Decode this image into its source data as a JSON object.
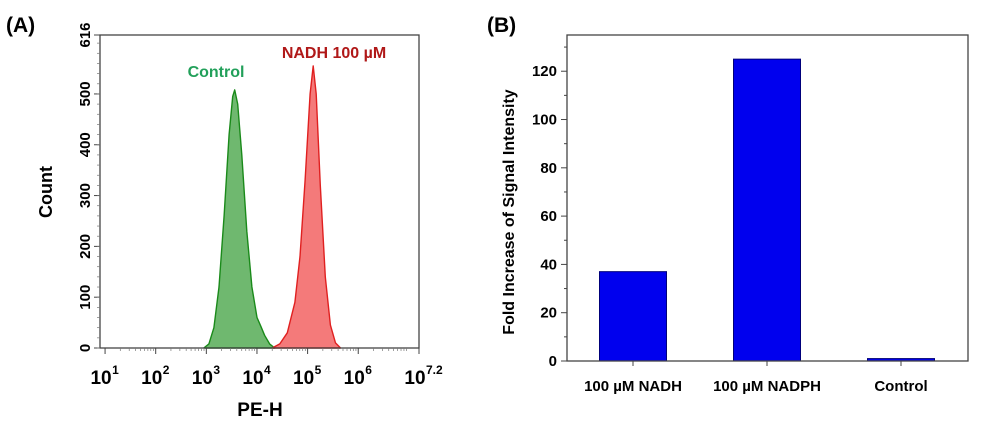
{
  "chart_data": [
    {
      "panel_label": "(A)",
      "type": "area",
      "xlabel": "PE-H",
      "ylabel": "Count",
      "x_scale": "log10",
      "xlim_log10": [
        0.9,
        7.2
      ],
      "ylim": [
        0,
        616
      ],
      "x_ticks": [
        {
          "base": "10",
          "exp": "1",
          "log": 1
        },
        {
          "base": "10",
          "exp": "2",
          "log": 2
        },
        {
          "base": "10",
          "exp": "3",
          "log": 3
        },
        {
          "base": "10",
          "exp": "4",
          "log": 4
        },
        {
          "base": "10",
          "exp": "5",
          "log": 5
        },
        {
          "base": "10",
          "exp": "6",
          "log": 6
        },
        {
          "base": "10",
          "exp": "7.2",
          "log": 7.2
        }
      ],
      "y_ticks": [
        0,
        100,
        200,
        300,
        400,
        500,
        616
      ],
      "grid": false,
      "series": [
        {
          "name": "Control",
          "color": "#1a8a1a",
          "fill": "#6fb86f",
          "label_color": "#22a05a",
          "points_log10x_count": [
            [
              2.95,
              0
            ],
            [
              3.05,
              8
            ],
            [
              3.15,
              40
            ],
            [
              3.25,
              120
            ],
            [
              3.35,
              260
            ],
            [
              3.45,
              420
            ],
            [
              3.52,
              495
            ],
            [
              3.56,
              508
            ],
            [
              3.62,
              480
            ],
            [
              3.7,
              380
            ],
            [
              3.8,
              230
            ],
            [
              3.9,
              120
            ],
            [
              4.0,
              60
            ],
            [
              4.08,
              42
            ],
            [
              4.15,
              25
            ],
            [
              4.25,
              8
            ],
            [
              4.35,
              0
            ]
          ]
        },
        {
          "name": "NADH 100 µM",
          "color": "#e02020",
          "fill": "#f47a7a",
          "label_color": "#b01818",
          "points_log10x_count": [
            [
              4.3,
              0
            ],
            [
              4.45,
              8
            ],
            [
              4.6,
              30
            ],
            [
              4.75,
              90
            ],
            [
              4.85,
              180
            ],
            [
              4.95,
              330
            ],
            [
              5.05,
              500
            ],
            [
              5.11,
              555
            ],
            [
              5.17,
              500
            ],
            [
              5.25,
              320
            ],
            [
              5.35,
              140
            ],
            [
              5.45,
              45
            ],
            [
              5.55,
              10
            ],
            [
              5.65,
              0
            ]
          ]
        }
      ]
    },
    {
      "panel_label": "(B)",
      "type": "bar",
      "categories": [
        "100 µM NADH",
        "100 µM NADPH",
        "Control"
      ],
      "values": [
        37,
        125,
        1
      ],
      "ylabel": "Fold Increase of Signal Intensity",
      "xlabel": "",
      "ylim": [
        0,
        135
      ],
      "y_ticks": [
        0,
        20,
        40,
        60,
        80,
        100,
        120
      ],
      "grid": false,
      "bar_color": "#0000ee",
      "bar_edge": "#00007a"
    }
  ]
}
